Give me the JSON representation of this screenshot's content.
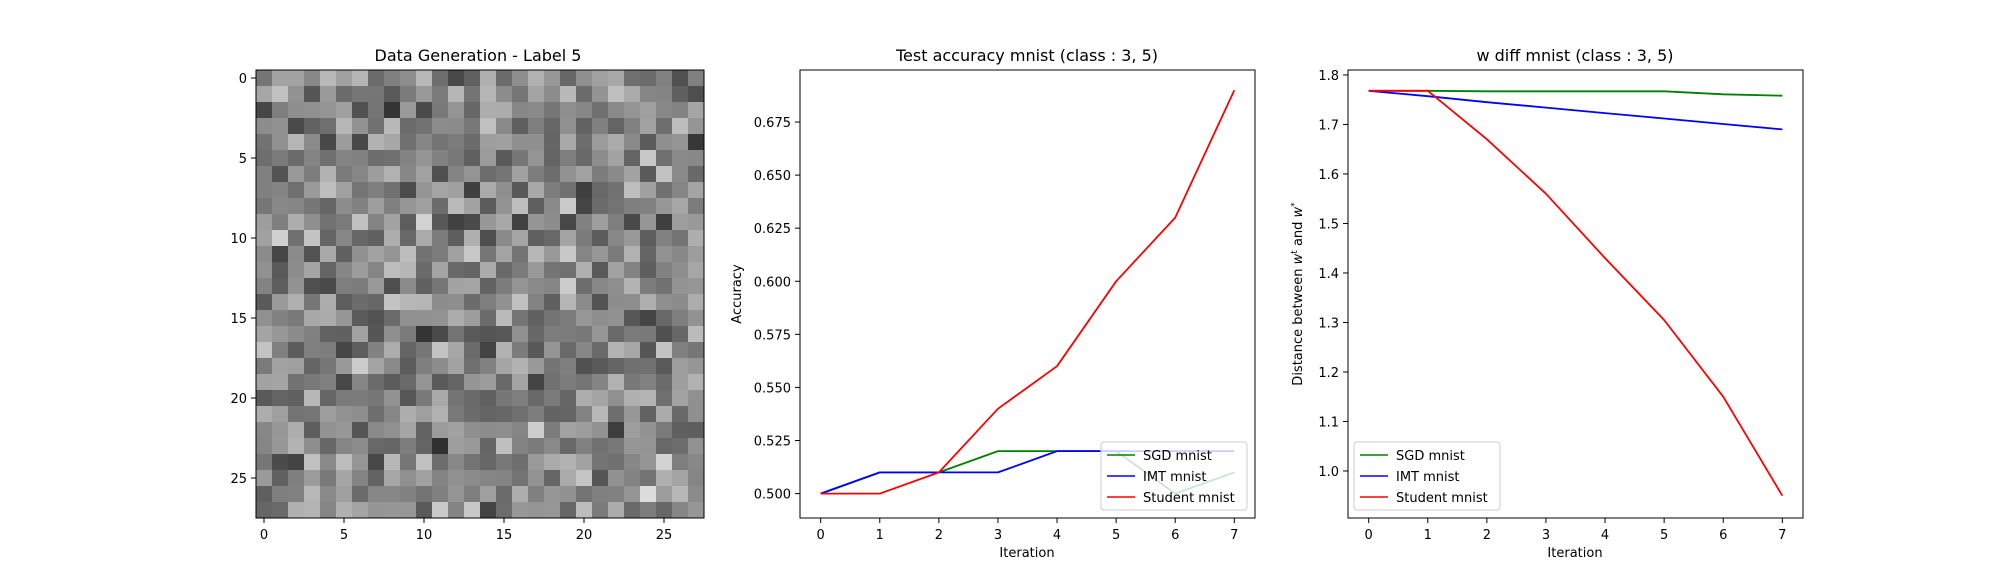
{
  "chart_data": [
    {
      "type": "heatmap",
      "title": "Data Generation - Label 5",
      "rows": 28,
      "cols": 28,
      "colormap": "gray",
      "x_ticks": [
        0,
        5,
        10,
        15,
        20,
        25
      ],
      "y_ticks": [
        0,
        5,
        10,
        15,
        20,
        25
      ],
      "note_values": "random grayscale noise pattern; cell values approximated",
      "seed": 5
    },
    {
      "type": "line",
      "title": "Test accuracy mnist (class : 3, 5)",
      "xlabel": "Iteration",
      "ylabel": "Accuracy",
      "x": [
        0,
        1,
        2,
        3,
        4,
        5,
        6,
        7
      ],
      "xlim": [
        -0.35,
        7.35
      ],
      "ylim": [
        0.4885,
        0.6995
      ],
      "x_ticks": [
        "0",
        "1",
        "2",
        "3",
        "4",
        "5",
        "6",
        "7"
      ],
      "y_ticks": [
        "0.500",
        "0.525",
        "0.550",
        "0.575",
        "0.600",
        "0.625",
        "0.650",
        "0.675"
      ],
      "y_tick_values": [
        0.5,
        0.525,
        0.55,
        0.575,
        0.6,
        0.625,
        0.65,
        0.675
      ],
      "legend_position": "lower-right",
      "series": [
        {
          "name": "SGD mnist",
          "color": "#008000",
          "values": [
            0.5,
            0.51,
            0.51,
            0.52,
            0.52,
            0.52,
            0.5,
            0.51
          ]
        },
        {
          "name": "IMT mnist",
          "color": "#0000ff",
          "values": [
            0.5,
            0.51,
            0.51,
            0.51,
            0.52,
            0.52,
            0.52,
            0.52
          ]
        },
        {
          "name": "Student mnist",
          "color": "#ff0000",
          "values": [
            0.5,
            0.5,
            0.51,
            0.54,
            0.56,
            0.6,
            0.63,
            0.69
          ]
        }
      ]
    },
    {
      "type": "line",
      "title": "w diff mnist (class : 3, 5)",
      "xlabel": "Iteration",
      "ylabel": "Distance between w^t and w^*",
      "x": [
        0,
        1,
        2,
        3,
        4,
        5,
        6,
        7
      ],
      "xlim": [
        -0.35,
        7.35
      ],
      "ylim": [
        0.905,
        1.81
      ],
      "x_ticks": [
        "0",
        "1",
        "2",
        "3",
        "4",
        "5",
        "6",
        "7"
      ],
      "y_ticks": [
        "1.0",
        "1.1",
        "1.2",
        "1.3",
        "1.4",
        "1.5",
        "1.6",
        "1.7",
        "1.8"
      ],
      "y_tick_values": [
        1.0,
        1.1,
        1.2,
        1.3,
        1.4,
        1.5,
        1.6,
        1.7,
        1.8
      ],
      "legend_position": "lower-left",
      "series": [
        {
          "name": "SGD mnist",
          "color": "#008000",
          "values": [
            1.768,
            1.768,
            1.767,
            1.767,
            1.767,
            1.767,
            1.761,
            1.758
          ]
        },
        {
          "name": "IMT mnist",
          "color": "#0000ff",
          "values": [
            1.768,
            1.757,
            1.745,
            1.734,
            1.723,
            1.712,
            1.701,
            1.69
          ]
        },
        {
          "name": "Student mnist",
          "color": "#ff0000",
          "values": [
            1.768,
            1.768,
            1.67,
            1.56,
            1.43,
            1.305,
            1.15,
            0.95
          ]
        }
      ]
    }
  ]
}
